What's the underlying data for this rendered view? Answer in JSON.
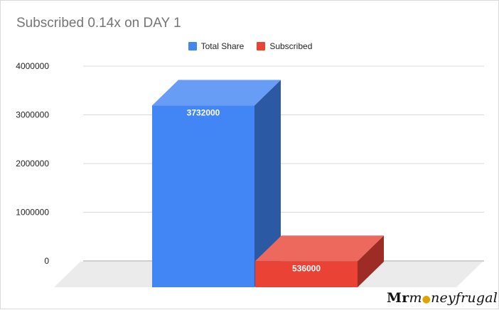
{
  "chart_data": {
    "type": "bar",
    "style": "3d",
    "title": "Subscribed 0.14x on DAY 1",
    "categories": [
      ""
    ],
    "series": [
      {
        "name": "Total Share",
        "values": [
          3732000
        ],
        "color": "#4285f4",
        "label": "3732000"
      },
      {
        "name": "Subscribed",
        "values": [
          536000
        ],
        "color": "#ea4335",
        "label": "536000"
      }
    ],
    "ylim": [
      0,
      4000000
    ],
    "yticks": [
      "0",
      "1000000",
      "2000000",
      "3000000",
      "4000000"
    ],
    "grid": true,
    "legend_position": "top-center",
    "xlabel": "",
    "ylabel": ""
  },
  "watermark": {
    "part1": "Mr",
    "part2": "m",
    "part3": "neyfrugal"
  }
}
